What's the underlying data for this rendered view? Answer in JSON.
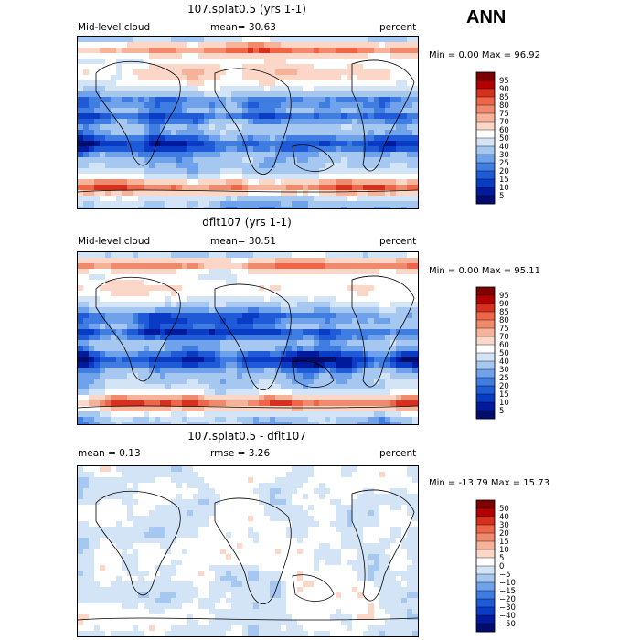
{
  "season_label": "ANN",
  "panels": [
    {
      "title": "107.splat0.5 (yrs 1-1)",
      "left_label": "Mid-level cloud",
      "center_label": "mean=   30.63",
      "right_label": "percent",
      "min_text": "Min =    0.00 Max =   96.92",
      "colorbar_labels": [
        "95",
        "90",
        "85",
        "80",
        "75",
        "70",
        "60",
        "50",
        "40",
        "30",
        "25",
        "20",
        "15",
        "10",
        "5"
      ],
      "colors": [
        "#7f0000",
        "#b30000",
        "#d7301f",
        "#ef6548",
        "#f08a6c",
        "#f7b29a",
        "#fcd6c6",
        "#ffffff",
        "#d4e4f7",
        "#a6c8f0",
        "#6fa2ea",
        "#3f7de0",
        "#1f5bd6",
        "#0a3bc4",
        "#001a9e",
        "#000c6e"
      ]
    },
    {
      "title": "dflt107 (yrs 1-1)",
      "left_label": "Mid-level cloud",
      "center_label": "mean=   30.51",
      "right_label": "percent",
      "min_text": "Min =    0.00 Max =   95.11",
      "colorbar_labels": [
        "95",
        "90",
        "85",
        "80",
        "75",
        "70",
        "60",
        "50",
        "40",
        "30",
        "25",
        "20",
        "15",
        "10",
        "5"
      ],
      "colors": [
        "#7f0000",
        "#b30000",
        "#d7301f",
        "#ef6548",
        "#f08a6c",
        "#f7b29a",
        "#fcd6c6",
        "#ffffff",
        "#d4e4f7",
        "#a6c8f0",
        "#6fa2ea",
        "#3f7de0",
        "#1f5bd6",
        "#0a3bc4",
        "#001a9e",
        "#000c6e"
      ]
    },
    {
      "title": "107.splat0.5 - dflt107",
      "left_label": "mean =    0.13",
      "center_label": "rmse =    3.26",
      "right_label": "percent",
      "min_text": "Min = -13.79 Max =  15.73",
      "colorbar_labels": [
        "50",
        "40",
        "30",
        "20",
        "15",
        "10",
        "5",
        "0",
        "−5",
        "−10",
        "−15",
        "−20",
        "−30",
        "−40",
        "−50"
      ],
      "colors": [
        "#7f0000",
        "#b30000",
        "#d7301f",
        "#ef6548",
        "#f08a6c",
        "#f7b29a",
        "#fcd6c6",
        "#ffffff",
        "#d4e4f7",
        "#a6c8f0",
        "#6fa2ea",
        "#3f7de0",
        "#1f5bd6",
        "#0a3bc4",
        "#001a9e",
        "#000c6e"
      ]
    }
  ],
  "chart_data": [
    {
      "type": "heatmap",
      "title": "107.splat0.5 (yrs 1-1)",
      "field": "Mid-level cloud",
      "units": "percent",
      "mean": 30.63,
      "min": 0.0,
      "max": 96.92,
      "levels": [
        5,
        10,
        15,
        20,
        25,
        30,
        40,
        50,
        60,
        70,
        75,
        80,
        85,
        90,
        95
      ]
    },
    {
      "type": "heatmap",
      "title": "dflt107 (yrs 1-1)",
      "field": "Mid-level cloud",
      "units": "percent",
      "mean": 30.51,
      "min": 0.0,
      "max": 95.11,
      "levels": [
        5,
        10,
        15,
        20,
        25,
        30,
        40,
        50,
        60,
        70,
        75,
        80,
        85,
        90,
        95
      ]
    },
    {
      "type": "heatmap",
      "title": "107.splat0.5 - dflt107",
      "units": "percent",
      "mean": 0.13,
      "rmse": 3.26,
      "min": -13.79,
      "max": 15.73,
      "levels": [
        -50,
        -40,
        -30,
        -20,
        -15,
        -10,
        -5,
        0,
        5,
        10,
        15,
        20,
        30,
        40,
        50
      ]
    }
  ]
}
